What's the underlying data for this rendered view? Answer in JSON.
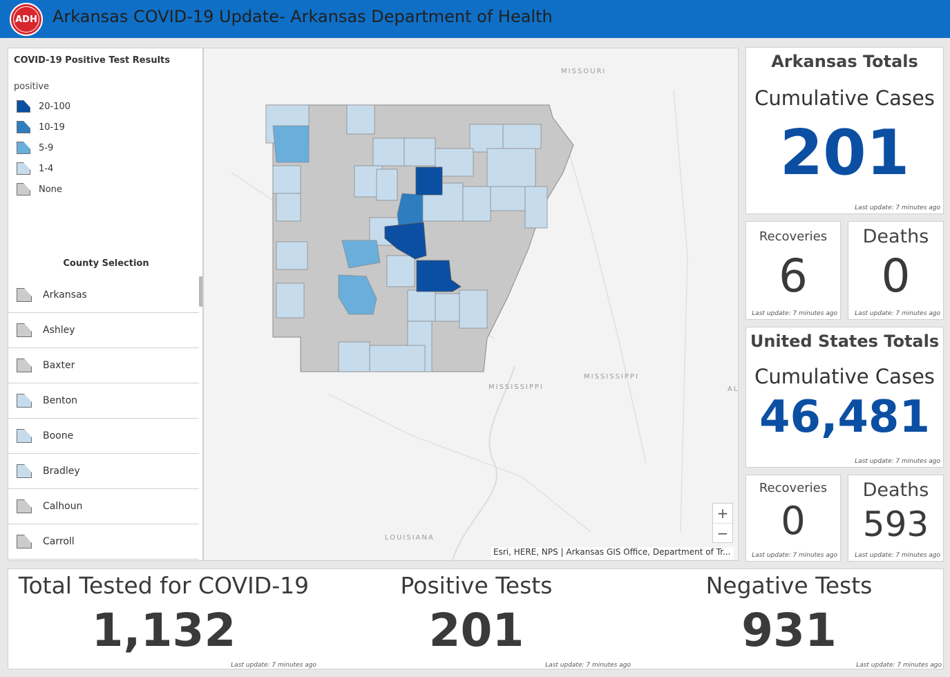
{
  "header": {
    "title": "Arkansas COVID-19 Update- Arkansas Department of Health",
    "logo_text": "ADH"
  },
  "legend": {
    "title": "COVID-19 Positive Test Results",
    "field": "positive",
    "items": [
      {
        "label": "20-100",
        "color": "#0b4fa3"
      },
      {
        "label": "10-19",
        "color": "#2e7dbf"
      },
      {
        "label": "5-9",
        "color": "#6aaedc"
      },
      {
        "label": "1-4",
        "color": "#c6dced"
      },
      {
        "label": "None",
        "color": "#cccccc"
      }
    ]
  },
  "county_selection": {
    "title": "County Selection",
    "counties": [
      {
        "name": "Arkansas",
        "color": "#cccccc"
      },
      {
        "name": "Ashley",
        "color": "#cccccc"
      },
      {
        "name": "Baxter",
        "color": "#cccccc"
      },
      {
        "name": "Benton",
        "color": "#c6dced"
      },
      {
        "name": "Boone",
        "color": "#c6dced"
      },
      {
        "name": "Bradley",
        "color": "#c6dced"
      },
      {
        "name": "Calhoun",
        "color": "#cccccc"
      },
      {
        "name": "Carroll",
        "color": "#cccccc"
      }
    ]
  },
  "map": {
    "labels": {
      "missouri": "MISSOURI",
      "mississippi_state": "MISSISSIPPI",
      "mississippi_river": "MISSISSIPPI",
      "louisiana": "LOUISIANA",
      "al": "AL"
    },
    "zoom_in": "+",
    "zoom_out": "−",
    "attribution": "Esri, HERE, NPS | Arkansas GIS Office, Department of Tr..."
  },
  "arkansas_totals": {
    "heading": "Arkansas Totals",
    "caption": "Cumulative Cases",
    "value": "201",
    "updated": "Last update: 7 minutes ago",
    "recoveries": {
      "label": "Recoveries",
      "value": "6",
      "updated": "Last update: 7 minutes ago"
    },
    "deaths": {
      "label": "Deaths",
      "value": "0",
      "updated": "Last update: 7 minutes ago"
    }
  },
  "us_totals": {
    "heading": "United States Totals",
    "caption": "Cumulative Cases",
    "value": "46,481",
    "updated": "Last update: 7 minutes ago",
    "recoveries": {
      "label": "Recoveries",
      "value": "0",
      "updated": "Last update: 7 minutes ago"
    },
    "deaths": {
      "label": "Deaths",
      "value": "593",
      "updated": "Last update: 7 minutes ago"
    }
  },
  "tests": {
    "total": {
      "label": "Total Tested for COVID-19",
      "value": "1,132",
      "updated": "Last update: 7 minutes ago"
    },
    "positive": {
      "label": "Positive Tests",
      "value": "201",
      "updated": "Last update: 7 minutes ago"
    },
    "negative": {
      "label": "Negative Tests",
      "value": "931",
      "updated": "Last update: 7 minutes ago"
    }
  }
}
